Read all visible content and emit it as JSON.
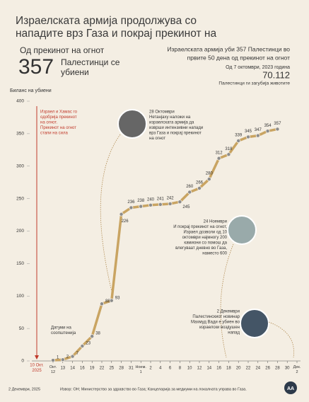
{
  "header": {
    "title_lines": [
      "Израелската армија продолжува со",
      "нападите врз Газа и покрај прекинот на"
    ],
    "left_caption": "Од прекинот на огнот",
    "left_number": "357",
    "left_sub": [
      "Палестинци се",
      "убиени"
    ],
    "right_lines": [
      "Израелската армија уби 357 Палестинци во",
      "првите 50 дена од прекинот на огнот"
    ],
    "right_since": "Од 7 октомври, 2023 година",
    "right_number": "70.112",
    "right_sub": "Палестинци ги загубија животите"
  },
  "chart_data": {
    "type": "line",
    "y_label": "Биланс на убиени",
    "categories": [
      "Окт. 12",
      "13",
      "14",
      "16",
      "19",
      "22",
      "25",
      "28",
      "31",
      "Ноем. 1",
      "2",
      "4",
      "6",
      "8",
      "10",
      "12",
      "14",
      "16",
      "18",
      "20",
      "22",
      "24",
      "26",
      "28",
      "30",
      "Дек. 2"
    ],
    "values": [
      1,
      2,
      7,
      23,
      38,
      88,
      93,
      226,
      236,
      238,
      240,
      241,
      242,
      245,
      260,
      266,
      280,
      312,
      318,
      339,
      345,
      347,
      354,
      357,
      null,
      null
    ],
    "color": "#c9a462",
    "ylim": [
      0,
      400
    ],
    "yticks": [
      0,
      50,
      100,
      150,
      200,
      250,
      300,
      350,
      400
    ],
    "annotations": [
      {
        "date": "28 Октомври",
        "lines": [
          "Нетанјаху наложи на",
          "израелската армија да",
          "изврши интензивни напади",
          "врз Газа и покрај прекинот",
          "на огнот"
        ]
      },
      {
        "date": "24 Ноември",
        "lines": [
          "И покрај прекинот на огнот,",
          "Израел дозволи од 10",
          "октомври најмногу 200",
          "камиони со помош да",
          "влегуваат дневно во Газа,",
          "наместо 600"
        ]
      },
      {
        "date": "2 Декември",
        "lines": [
          "Палестинскиот новинар",
          "Махмуд Вади е убиен во",
          "израелски воздушен",
          "напад"
        ]
      }
    ],
    "ceasefire_note": [
      "Израел и Хамас го",
      "одобрија прекинот",
      "на огнот.",
      "Прекинот на огнот",
      "стапи на сила"
    ],
    "ceasefire_date": [
      "10 Окт.",
      "2025"
    ],
    "dates_note": [
      "Датуми на",
      "соопштенија"
    ]
  },
  "footer": {
    "date": "2 Декември, 2025",
    "source": "Извор: ОН; Министерство за здравство во Газа; Канцеларија за медиуми на локалната управа во Газа.",
    "logo": "AA"
  }
}
